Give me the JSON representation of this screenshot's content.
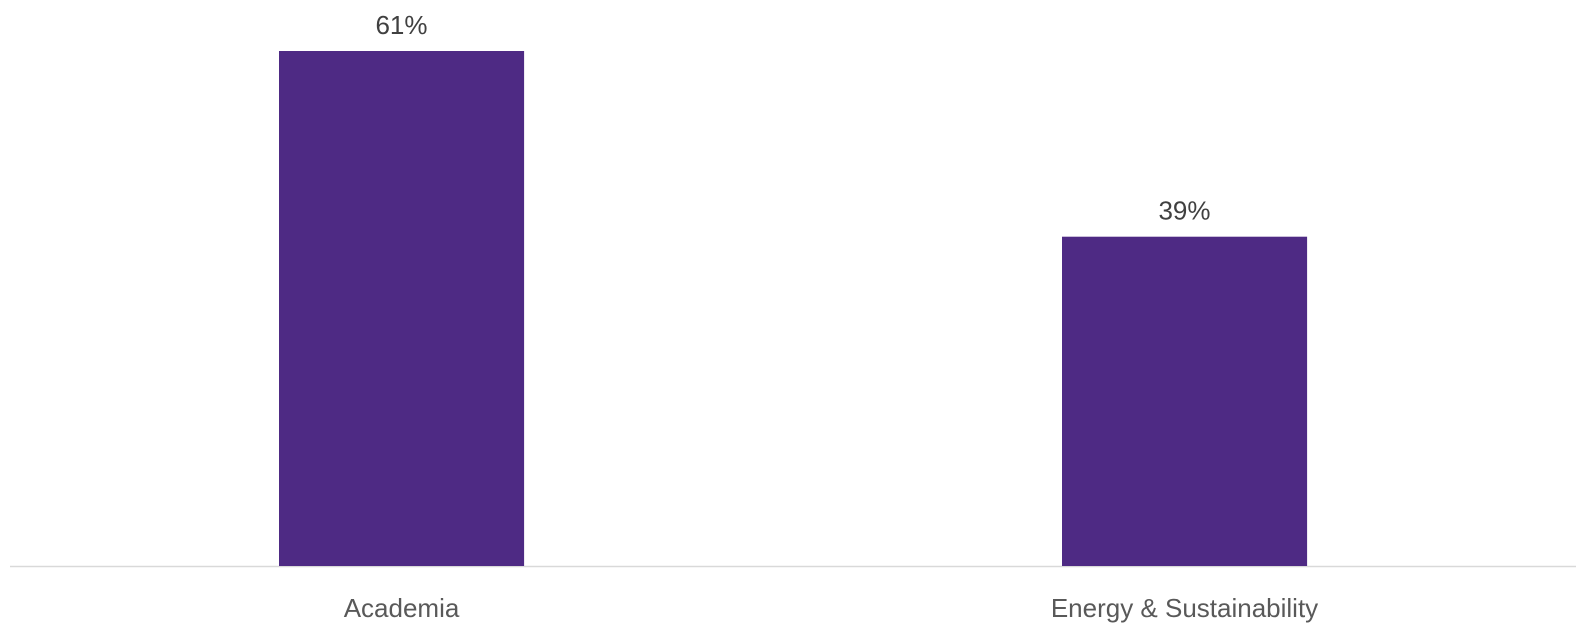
{
  "colors": {
    "bar": "#4e2a84",
    "axis": "#d9d9d9"
  },
  "chart_data": {
    "type": "bar",
    "categories": [
      "Academia",
      "Energy & Sustainability"
    ],
    "values": [
      61,
      39
    ],
    "value_labels": [
      "61%",
      "39%"
    ],
    "ylim": [
      0,
      61
    ],
    "grid": false,
    "legend": "none",
    "y_axis_visible": false
  }
}
